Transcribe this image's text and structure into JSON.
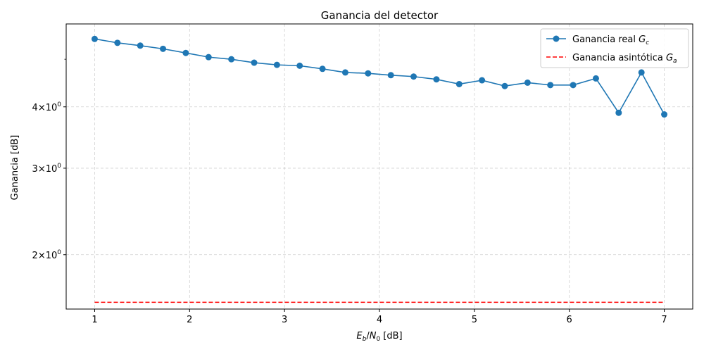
{
  "chart_data": {
    "type": "line",
    "title": "Ganancia del detector",
    "xlabel": "E_b/N_0 [dB]",
    "ylabel": "Ganancia [dB]",
    "xlim": [
      0.7,
      7.3
    ],
    "ylim": [
      1.55,
      5.9
    ],
    "yscale": "log",
    "grid": true,
    "legend_position": "top-right",
    "x_ticks": [
      1,
      2,
      3,
      4,
      5,
      6,
      7
    ],
    "x_tick_labels": [
      "1",
      "2",
      "3",
      "4",
      "5",
      "6",
      "7"
    ],
    "y_ticks": [
      2,
      3,
      4
    ],
    "y_tick_labels": [
      {
        "base": "2",
        "exp": "0"
      },
      {
        "base": "3",
        "exp": "0"
      },
      {
        "base": "4",
        "exp": "0"
      }
    ],
    "series": [
      {
        "name": "Ganancia real G_c",
        "color": "#1f77b4",
        "style": "solid",
        "marker": "circle",
        "x": [
          1.0,
          1.24,
          1.48,
          1.72,
          1.96,
          2.2,
          2.44,
          2.68,
          2.92,
          3.16,
          3.4,
          3.64,
          3.88,
          4.12,
          4.36,
          4.6,
          4.84,
          5.08,
          5.32,
          5.56,
          5.8,
          6.04,
          6.28,
          6.52,
          6.76,
          7.0
        ],
        "y": [
          5.5,
          5.4,
          5.33,
          5.25,
          5.15,
          5.05,
          5.0,
          4.92,
          4.87,
          4.85,
          4.78,
          4.7,
          4.68,
          4.64,
          4.61,
          4.55,
          4.45,
          4.53,
          4.41,
          4.48,
          4.43,
          4.43,
          4.57,
          3.89,
          4.7,
          3.86
        ]
      },
      {
        "name": "Ganancia asintótica G_a",
        "color": "#ff0000",
        "style": "dashed",
        "marker": "none",
        "x": [
          1.0,
          7.0
        ],
        "y": [
          1.6,
          1.6
        ]
      }
    ]
  },
  "legend": {
    "real_prefix": "Ganancia real ",
    "real_sym": "G",
    "real_sub": "c",
    "asym_prefix": "Ganancia asintótica ",
    "asym_sym": "G",
    "asym_sub": "a"
  },
  "labels": {
    "xlabel_sym1": "E",
    "xlabel_sub1": "b",
    "xlabel_slash": "/",
    "xlabel_sym2": "N",
    "xlabel_sub2": "0",
    "xlabel_unit": " [dB]",
    "tick_times": "×",
    "tick_exp": "0"
  }
}
